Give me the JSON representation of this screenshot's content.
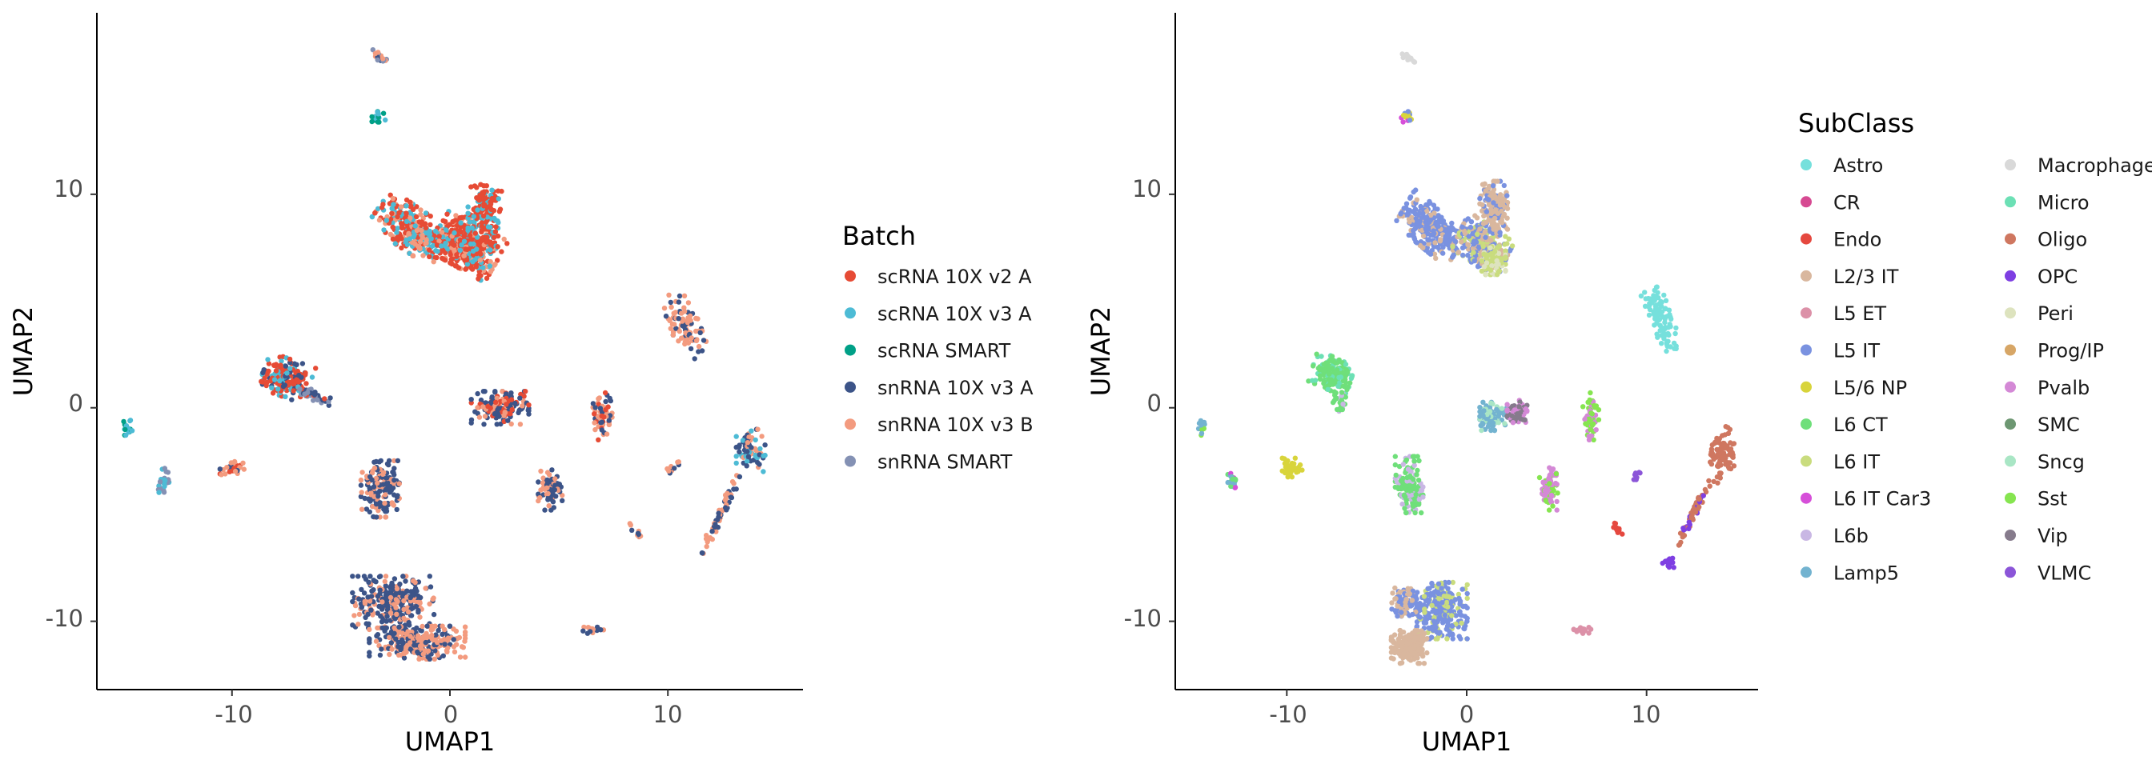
{
  "chart_data": [
    {
      "type": "scatter",
      "title": "",
      "xlabel": "UMAP1",
      "ylabel": "UMAP2",
      "xlim": [
        -16.2,
        16.2
      ],
      "ylim": [
        -13.2,
        18.5
      ],
      "x_ticks": [
        -10,
        0,
        10
      ],
      "y_ticks": [
        -10,
        0,
        10
      ],
      "x_tick_labels": [
        "-10",
        "0",
        "10"
      ],
      "y_tick_labels": [
        "-10",
        "0",
        "10"
      ],
      "grid": false,
      "legend": {
        "title": "Batch",
        "placement": "right",
        "entries": [
          {
            "label": "scRNA 10X v2 A",
            "color": "#E64B35"
          },
          {
            "label": "scRNA 10X v3 A",
            "color": "#4DBBD5"
          },
          {
            "label": "scRNA SMART",
            "color": "#00A087"
          },
          {
            "label": "snRNA 10X v3 A",
            "color": "#3C5488"
          },
          {
            "label": "snRNA 10X v3 B",
            "color": "#F39B7F"
          },
          {
            "label": "snRNA SMART",
            "color": "#8491B4"
          }
        ]
      },
      "clusters": [
        {
          "x": 0.8,
          "y": 7.6,
          "rx": 1.4,
          "ry": 1.0,
          "angle": -30,
          "n": 420,
          "colors": [
            "#E64B35",
            "#E64B35",
            "#E64B35",
            "#4DBBD5",
            "#F39B7F"
          ]
        },
        {
          "x": -1.8,
          "y": 8.4,
          "rx": 1.6,
          "ry": 0.9,
          "angle": -35,
          "n": 280,
          "colors": [
            "#E64B35",
            "#E64B35",
            "#4DBBD5",
            "#F39B7F"
          ]
        },
        {
          "x": 1.6,
          "y": 9.3,
          "rx": 0.7,
          "ry": 1.2,
          "angle": 0,
          "n": 160,
          "colors": [
            "#E64B35",
            "#E64B35",
            "#4DBBD5"
          ]
        },
        {
          "x": -7.5,
          "y": 1.4,
          "rx": 1.0,
          "ry": 0.8,
          "angle": -20,
          "n": 170,
          "colors": [
            "#E64B35",
            "#E64B35",
            "#4DBBD5",
            "#3C5488"
          ]
        },
        {
          "x": -6.3,
          "y": 0.6,
          "rx": 0.8,
          "ry": 0.2,
          "angle": -25,
          "n": 40,
          "colors": [
            "#E64B35",
            "#3C5488",
            "#8491B4"
          ]
        },
        {
          "x": 2.3,
          "y": 0.0,
          "rx": 1.2,
          "ry": 0.7,
          "angle": 0,
          "n": 150,
          "colors": [
            "#3C5488",
            "#E64B35",
            "#F39B7F",
            "#3C5488"
          ]
        },
        {
          "x": 7.0,
          "y": -0.4,
          "rx": 0.4,
          "ry": 1.0,
          "angle": 0,
          "n": 60,
          "colors": [
            "#E64B35",
            "#3C5488",
            "#F39B7F"
          ]
        },
        {
          "x": -3.2,
          "y": -3.8,
          "rx": 0.8,
          "ry": 1.2,
          "angle": 0,
          "n": 150,
          "colors": [
            "#F39B7F",
            "#3C5488",
            "#3C5488"
          ]
        },
        {
          "x": 4.6,
          "y": -3.8,
          "rx": 0.5,
          "ry": 0.9,
          "angle": 0,
          "n": 80,
          "colors": [
            "#3C5488",
            "#F39B7F",
            "#3C5488"
          ]
        },
        {
          "x": -2.6,
          "y": -9.1,
          "rx": 1.7,
          "ry": 1.1,
          "angle": 0,
          "n": 300,
          "colors": [
            "#3C5488",
            "#3C5488",
            "#F39B7F"
          ]
        },
        {
          "x": -1.5,
          "y": -11.0,
          "rx": 2.0,
          "ry": 0.7,
          "angle": 0,
          "n": 260,
          "colors": [
            "#F39B7F",
            "#F39B7F",
            "#3C5488"
          ]
        },
        {
          "x": 10.8,
          "y": 3.8,
          "rx": 0.6,
          "ry": 1.5,
          "angle": 20,
          "n": 90,
          "colors": [
            "#F39B7F",
            "#F39B7F",
            "#3C5488"
          ]
        },
        {
          "x": 13.8,
          "y": -2.0,
          "rx": 0.6,
          "ry": 0.9,
          "angle": 0,
          "n": 70,
          "colors": [
            "#F39B7F",
            "#4DBBD5",
            "#3C5488"
          ]
        },
        {
          "x": 12.4,
          "y": -5.0,
          "rx": 1.8,
          "ry": 0.15,
          "angle": 65,
          "n": 60,
          "colors": [
            "#F39B7F",
            "#3C5488"
          ]
        },
        {
          "x": -10.0,
          "y": -2.9,
          "rx": 0.5,
          "ry": 0.35,
          "angle": 0,
          "n": 30,
          "colors": [
            "#F39B7F",
            "#3C5488",
            "#E64B35"
          ]
        },
        {
          "x": -13.1,
          "y": -3.5,
          "rx": 0.25,
          "ry": 0.6,
          "angle": 0,
          "n": 25,
          "colors": [
            "#8491B4",
            "#4DBBD5"
          ]
        },
        {
          "x": -14.8,
          "y": -0.9,
          "rx": 0.2,
          "ry": 0.35,
          "angle": 0,
          "n": 15,
          "colors": [
            "#00A087",
            "#4DBBD5"
          ]
        },
        {
          "x": -3.3,
          "y": 13.6,
          "rx": 0.3,
          "ry": 0.25,
          "angle": 0,
          "n": 15,
          "colors": [
            "#00A087",
            "#4DBBD5"
          ]
        },
        {
          "x": -3.2,
          "y": 16.4,
          "rx": 0.5,
          "ry": 0.15,
          "angle": -30,
          "n": 15,
          "colors": [
            "#3C5488",
            "#8491B4",
            "#F39B7F"
          ]
        },
        {
          "x": 6.5,
          "y": -10.4,
          "rx": 0.5,
          "ry": 0.15,
          "angle": 0,
          "n": 15,
          "colors": [
            "#3C5488",
            "#F39B7F"
          ]
        },
        {
          "x": 10.2,
          "y": -2.8,
          "rx": 0.4,
          "ry": 0.15,
          "angle": 40,
          "n": 10,
          "colors": [
            "#3C5488",
            "#F39B7F"
          ]
        },
        {
          "x": 8.5,
          "y": -5.8,
          "rx": 0.4,
          "ry": 0.12,
          "angle": -45,
          "n": 10,
          "colors": [
            "#3C5488",
            "#F39B7F"
          ]
        }
      ]
    },
    {
      "type": "scatter",
      "title": "",
      "xlabel": "UMAP1",
      "ylabel": "UMAP2",
      "xlim": [
        -16.2,
        16.2
      ],
      "ylim": [
        -13.2,
        18.5
      ],
      "x_ticks": [
        -10,
        0,
        10
      ],
      "y_ticks": [
        -10,
        0,
        10
      ],
      "x_tick_labels": [
        "-10",
        "0",
        "10"
      ],
      "y_tick_labels": [
        "-10",
        "0",
        "10"
      ],
      "grid": false,
      "legend": {
        "title": "SubClass",
        "placement": "right",
        "columns": 2,
        "entries": [
          {
            "label": "Astro",
            "color": "#76E0DC"
          },
          {
            "label": "CR",
            "color": "#D64A92"
          },
          {
            "label": "Endo",
            "color": "#E5483F"
          },
          {
            "label": "L2/3 IT",
            "color": "#D9B79E"
          },
          {
            "label": "L5 ET",
            "color": "#DC91A8"
          },
          {
            "label": "L5 IT",
            "color": "#7A92E0"
          },
          {
            "label": "L5/6 NP",
            "color": "#D8D43B"
          },
          {
            "label": "L6 CT",
            "color": "#6FDF7A"
          },
          {
            "label": "L6 IT",
            "color": "#C9DC7E"
          },
          {
            "label": "L6 IT Car3",
            "color": "#D64FD9"
          },
          {
            "label": "L6b",
            "color": "#C9B7E4"
          },
          {
            "label": "Lamp5",
            "color": "#73B3D0"
          },
          {
            "label": "Macrophage",
            "color": "#D9D9D9"
          },
          {
            "label": "Micro",
            "color": "#6CE0B5"
          },
          {
            "label": "Oligo",
            "color": "#CF7760"
          },
          {
            "label": "OPC",
            "color": "#7E3FE2"
          },
          {
            "label": "Peri",
            "color": "#DDE3BE"
          },
          {
            "label": "Prog/IP",
            "color": "#D7A666"
          },
          {
            "label": "Pvalb",
            "color": "#D489D6"
          },
          {
            "label": "SMC",
            "color": "#6D9772"
          },
          {
            "label": "Sncg",
            "color": "#A9E6C5"
          },
          {
            "label": "Sst",
            "color": "#86E550"
          },
          {
            "label": "Vip",
            "color": "#867B8C"
          },
          {
            "label": "VLMC",
            "color": "#8B55D8"
          }
        ]
      },
      "clusters": [
        {
          "x": -2.0,
          "y": 8.4,
          "rx": 1.6,
          "ry": 0.9,
          "angle": -35,
          "n": 300,
          "colors": [
            "#7A92E0",
            "#7A92E0",
            "#7A92E0",
            "#D9B79E"
          ]
        },
        {
          "x": 0.9,
          "y": 7.6,
          "rx": 1.3,
          "ry": 0.9,
          "angle": -30,
          "n": 300,
          "colors": [
            "#7A92E0",
            "#D9B79E",
            "#C9DC7E",
            "#7A92E0"
          ]
        },
        {
          "x": 1.5,
          "y": 6.9,
          "rx": 0.6,
          "ry": 0.6,
          "angle": 0,
          "n": 90,
          "colors": [
            "#C9DC7E",
            "#C9DC7E",
            "#DDE3BE"
          ]
        },
        {
          "x": 1.5,
          "y": 9.4,
          "rx": 0.7,
          "ry": 1.1,
          "angle": 0,
          "n": 170,
          "colors": [
            "#D9B79E",
            "#D9B79E",
            "#D9B79E",
            "#7A92E0"
          ]
        },
        {
          "x": -7.5,
          "y": 1.6,
          "rx": 1.0,
          "ry": 0.7,
          "angle": -20,
          "n": 170,
          "colors": [
            "#6FDF7A",
            "#6FDF7A",
            "#6CE0B5"
          ]
        },
        {
          "x": -7.1,
          "y": 0.3,
          "rx": 0.3,
          "ry": 0.5,
          "angle": 0,
          "n": 25,
          "colors": [
            "#C9B7E4",
            "#6FDF7A"
          ]
        },
        {
          "x": 1.5,
          "y": -0.4,
          "rx": 0.7,
          "ry": 0.6,
          "angle": 0,
          "n": 110,
          "colors": [
            "#73B3D0",
            "#73B3D0",
            "#A9E6C5"
          ]
        },
        {
          "x": 2.8,
          "y": -0.2,
          "rx": 0.5,
          "ry": 0.5,
          "angle": 0,
          "n": 80,
          "colors": [
            "#867B8C",
            "#D489D6",
            "#867B8C"
          ]
        },
        {
          "x": 6.9,
          "y": -0.4,
          "rx": 0.4,
          "ry": 1.0,
          "angle": 0,
          "n": 60,
          "colors": [
            "#86E550",
            "#D489D6",
            "#86E550"
          ]
        },
        {
          "x": -3.2,
          "y": -3.6,
          "rx": 0.7,
          "ry": 1.2,
          "angle": 0,
          "n": 150,
          "colors": [
            "#6FDF7A",
            "#6FDF7A",
            "#C9B7E4"
          ]
        },
        {
          "x": 4.6,
          "y": -3.8,
          "rx": 0.5,
          "ry": 0.9,
          "angle": 0,
          "n": 80,
          "colors": [
            "#D489D6",
            "#86E550",
            "#D489D6"
          ]
        },
        {
          "x": -1.4,
          "y": -9.5,
          "rx": 1.3,
          "ry": 1.2,
          "angle": 0,
          "n": 280,
          "colors": [
            "#7A92E0",
            "#7A92E0",
            "#7A92E0",
            "#C9DC7E"
          ]
        },
        {
          "x": -3.2,
          "y": -11.2,
          "rx": 0.9,
          "ry": 0.7,
          "angle": 0,
          "n": 200,
          "colors": [
            "#D9B79E",
            "#D9B79E",
            "#D9B79E"
          ]
        },
        {
          "x": -3.5,
          "y": -9.1,
          "rx": 0.6,
          "ry": 0.6,
          "angle": 0,
          "n": 80,
          "colors": [
            "#D9B79E",
            "#7A92E0"
          ]
        },
        {
          "x": 10.8,
          "y": 4.1,
          "rx": 0.6,
          "ry": 1.4,
          "angle": 20,
          "n": 100,
          "colors": [
            "#76E0DC",
            "#76E0DC"
          ]
        },
        {
          "x": 14.2,
          "y": -2.2,
          "rx": 0.6,
          "ry": 1.2,
          "angle": 0,
          "n": 90,
          "colors": [
            "#CF7760",
            "#CF7760"
          ]
        },
        {
          "x": 12.7,
          "y": -4.8,
          "rx": 1.7,
          "ry": 0.15,
          "angle": 60,
          "n": 60,
          "colors": [
            "#CF7760",
            "#CF7760",
            "#7E3FE2"
          ]
        },
        {
          "x": 11.2,
          "y": -7.3,
          "rx": 0.3,
          "ry": 0.3,
          "angle": 0,
          "n": 20,
          "colors": [
            "#7E3FE2"
          ]
        },
        {
          "x": -9.7,
          "y": -2.8,
          "rx": 0.5,
          "ry": 0.4,
          "angle": 0,
          "n": 40,
          "colors": [
            "#D8D43B",
            "#D8D43B"
          ]
        },
        {
          "x": -13.0,
          "y": -3.5,
          "rx": 0.25,
          "ry": 0.5,
          "angle": 0,
          "n": 25,
          "colors": [
            "#73B3D0",
            "#6FDF7A",
            "#D64FD9"
          ]
        },
        {
          "x": -14.7,
          "y": -0.9,
          "rx": 0.2,
          "ry": 0.35,
          "angle": 0,
          "n": 15,
          "colors": [
            "#86E550",
            "#73B3D0"
          ]
        },
        {
          "x": -3.3,
          "y": 13.6,
          "rx": 0.3,
          "ry": 0.25,
          "angle": 0,
          "n": 15,
          "colors": [
            "#7A92E0",
            "#D8D43B",
            "#D64FD9"
          ]
        },
        {
          "x": -3.2,
          "y": 16.4,
          "rx": 0.5,
          "ry": 0.15,
          "angle": -30,
          "n": 15,
          "colors": [
            "#D9D9D9",
            "#D9D9D9"
          ]
        },
        {
          "x": 8.4,
          "y": -5.7,
          "rx": 0.3,
          "ry": 0.12,
          "angle": -40,
          "n": 12,
          "colors": [
            "#E5483F"
          ]
        },
        {
          "x": 6.5,
          "y": -10.4,
          "rx": 0.5,
          "ry": 0.15,
          "angle": 0,
          "n": 15,
          "colors": [
            "#DC91A8"
          ]
        },
        {
          "x": 9.4,
          "y": -3.2,
          "rx": 0.35,
          "ry": 0.12,
          "angle": 60,
          "n": 10,
          "colors": [
            "#8B55D8"
          ]
        }
      ]
    }
  ]
}
